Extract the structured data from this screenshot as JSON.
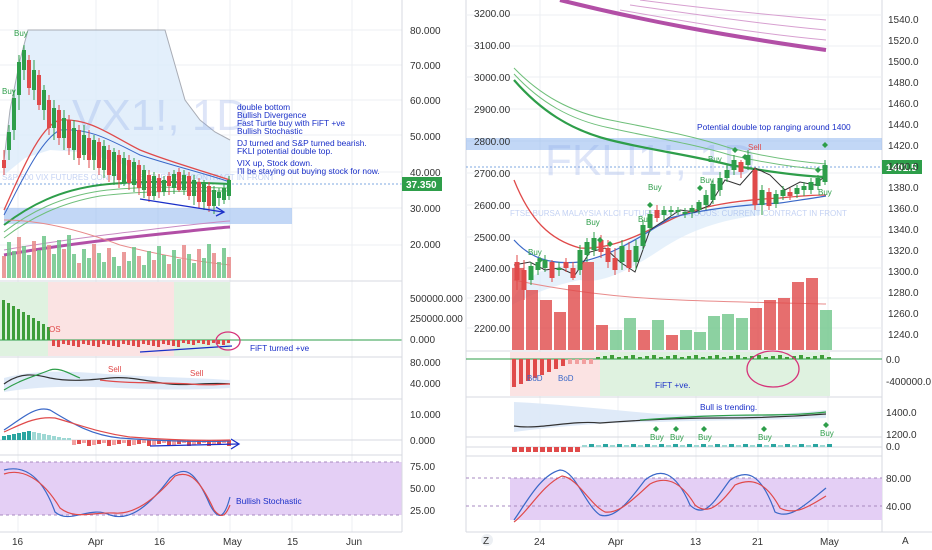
{
  "chart_data": [
    {
      "type": "candlestick",
      "symbol_watermark": "VX1!, 1D",
      "watermark_subtitle": "S&P 500 VIX FUTURES CONTINUOUS: CURRENT CONTRACT IN FRONT",
      "price_axis": [
        "80.000",
        "70.000",
        "60.000",
        "50.000",
        "40.000",
        "30.000",
        "20.000"
      ],
      "price_label": "37.350",
      "volume_axis": [
        "500000.000",
        "250000.000",
        "0.000"
      ],
      "rsi_axis": [
        "80.000",
        "40.000"
      ],
      "macd_axis": [
        "10.000",
        "0.000"
      ],
      "stoch_axis": [
        "75.00",
        "50.00",
        "25.00"
      ],
      "x_ticks": [
        "16",
        "Apr",
        "16",
        "May",
        "15",
        "Jun"
      ],
      "signals": [
        "Buy",
        "Buy",
        "Sell",
        "Sell",
        "OS"
      ],
      "annotations": [
        "double bottom",
        "Bullish Divergence",
        "Fast Turtle buy with FiFT +ve",
        "Bullish Stochastic",
        "DJ turned and S&P turned bearish.",
        "FKLI potential double top.",
        "VIX up, Stock down.",
        "I'll be staying out buying stock for now.",
        "FiFT turned +ve",
        "Bullish Stochastic"
      ]
    },
    {
      "type": "candlestick",
      "symbol_watermark": "FKLI1!, 1D",
      "watermark_subtitle": "FTSE BURSA MALAYSIA KLCI FUTURES CONTINUOUS: CURRENT CONTRACT IN FRONT",
      "left_axis": [
        "3200.00",
        "3100.00",
        "3000.00",
        "2900.00",
        "2800.00",
        "2700.00",
        "2600.00",
        "2500.00",
        "2400.00",
        "2300.00",
        "2200.00"
      ],
      "right_axis": [
        "1540.0",
        "1520.0",
        "1500.0",
        "1480.0",
        "1460.0",
        "1440.0",
        "1420.0",
        "1400.0",
        "1380.0",
        "1360.0",
        "1340.0",
        "1320.0",
        "1300.0",
        "1280.0",
        "1260.0",
        "1240.0"
      ],
      "price_label": "1401.5",
      "fift_axis": [
        "0.0",
        "-400000.0"
      ],
      "trend_axis": [
        "1400.0",
        "1200.0"
      ],
      "zero_axis": [
        "0.0"
      ],
      "stoch_axis": [
        "80.00",
        "40.00"
      ],
      "x_ticks": [
        "24",
        "Apr",
        "13",
        "21",
        "May"
      ],
      "corner_labels": [
        "Z",
        "A"
      ],
      "signals": [
        "Buy",
        "Buy",
        "Buy",
        "Buy",
        "Buy",
        "Sell",
        "Buy",
        "Buy",
        "Buy",
        "Buy",
        "Buy",
        "BoD",
        "BoD"
      ],
      "annotations": [
        "Potential double top ranging around 1400",
        "FiFT +ve.",
        "Bull is trending."
      ]
    }
  ]
}
